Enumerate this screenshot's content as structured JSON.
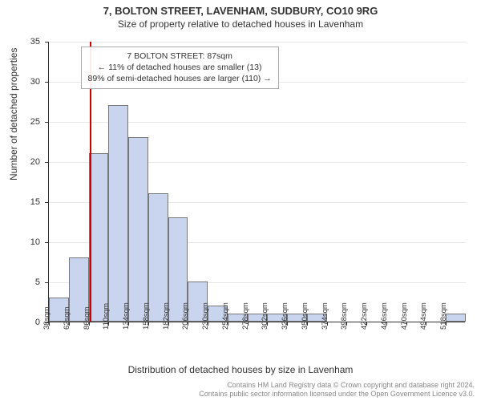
{
  "title": "7, BOLTON STREET, LAVENHAM, SUDBURY, CO10 9RG",
  "subtitle": "Size of property relative to detached houses in Lavenham",
  "y_axis_label": "Number of detached properties",
  "x_axis_label": "Distribution of detached houses by size in Lavenham",
  "chart": {
    "type": "histogram",
    "ylim": [
      0,
      35
    ],
    "ytick_step": 5,
    "background_color": "#ffffff",
    "grid_color": "#e8e8e8",
    "axis_color": "#333333",
    "bar_fill": "#c9d4ee",
    "bar_border": "#777777",
    "marker_color": "#d00000",
    "marker_value": 87,
    "x_start": 38,
    "x_step": 24,
    "x_count": 21,
    "x_unit": "sqm",
    "values": [
      3,
      8,
      21,
      27,
      23,
      16,
      13,
      5,
      2,
      1,
      1,
      1,
      1,
      1,
      0,
      0,
      0,
      0,
      0,
      0,
      1
    ],
    "title_fontsize": 13,
    "subtitle_fontsize": 12,
    "axis_label_fontsize": 12,
    "tick_fontsize": 11
  },
  "annotation": {
    "line1": "7 BOLTON STREET: 87sqm",
    "line2": "← 11% of detached houses are smaller (13)",
    "line3": "89% of semi-detached houses are larger (110) →"
  },
  "footer": {
    "line1": "Contains HM Land Registry data © Crown copyright and database right 2024.",
    "line2": "Contains public sector information licensed under the Open Government Licence v3.0."
  }
}
